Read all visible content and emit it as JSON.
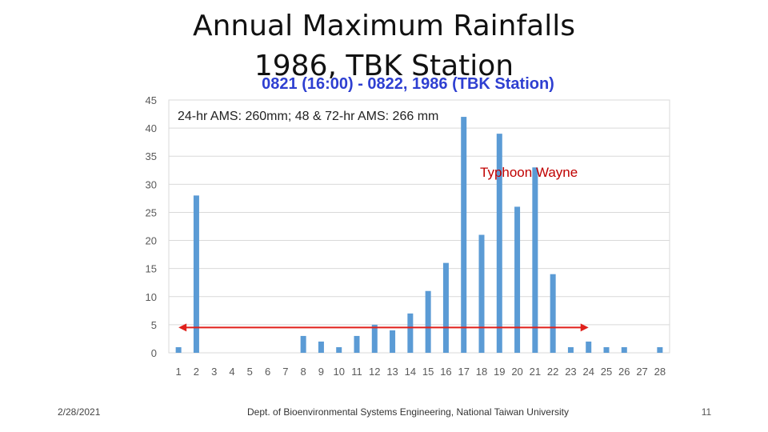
{
  "slide": {
    "title_line1": "Annual Maximum Rainfalls",
    "title_line2": "1986, TBK Station",
    "footer_date": "2/28/2021",
    "footer_center": "Dept. of Bioenvironmental Systems Engineering, National Taiwan University",
    "page_number": "11"
  },
  "chart_data": {
    "type": "bar",
    "title": "0821 (16:00) - 0822, 1986 (TBK Station)",
    "xlabel": "",
    "ylabel": "",
    "categories": [
      "1",
      "2",
      "3",
      "4",
      "5",
      "6",
      "7",
      "8",
      "9",
      "10",
      "11",
      "12",
      "13",
      "14",
      "15",
      "16",
      "17",
      "18",
      "19",
      "20",
      "21",
      "22",
      "23",
      "24",
      "25",
      "26",
      "27",
      "28"
    ],
    "series": [
      {
        "values": [
          1,
          28,
          0,
          0,
          0,
          0,
          0,
          3,
          2,
          1,
          3,
          5,
          4,
          7,
          11,
          16,
          42,
          21,
          39,
          26,
          33,
          14,
          1,
          2,
          1,
          1,
          0,
          1
        ]
      }
    ],
    "ylim": [
      0,
      45
    ],
    "yticks": [
      0,
      5,
      10,
      15,
      20,
      25,
      30,
      35,
      40,
      45
    ],
    "grid": true,
    "colors": {
      "bar": "#5b9bd5",
      "title": "#2e3fd1",
      "annotation": "#c00000",
      "arrow": "#e0201b",
      "grid": "#d9d9d9"
    },
    "annotations": {
      "ams_text": "24-hr AMS: 260mm; 48 & 72-hr AMS: 266 mm",
      "typhoon_text": "Typhoon Wayne",
      "arrow_y": 4.5,
      "arrow_from": 1,
      "arrow_to": 24
    }
  }
}
